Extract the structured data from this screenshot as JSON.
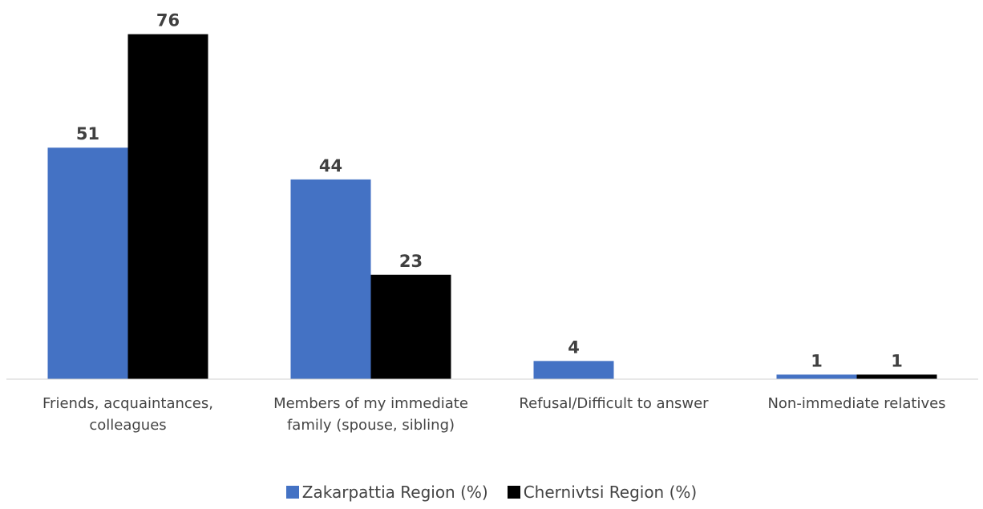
{
  "chart_data": {
    "type": "bar",
    "categories": [
      "Friends, acquaintances, colleagues",
      "Members of my immediate family (spouse, sibling)",
      "Refusal/Difficult to answer",
      "Non-immediate relatives"
    ],
    "series": [
      {
        "name": "Zakarpattia Region (%)",
        "color": "#4472c4",
        "values": [
          51,
          44,
          4,
          1
        ]
      },
      {
        "name": "Chernivtsi Region (%)",
        "color": "#000000",
        "values": [
          76,
          23,
          null,
          1
        ]
      }
    ],
    "ylim": [
      0,
      80
    ]
  }
}
